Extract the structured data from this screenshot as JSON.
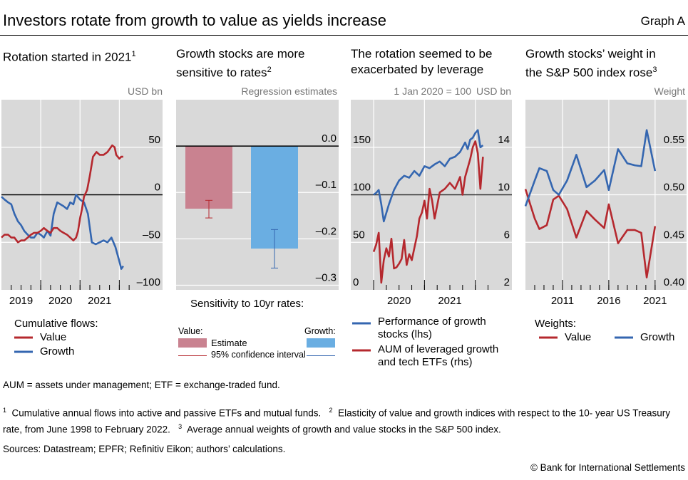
{
  "header": {
    "title": "Investors rotate from growth to value as yields increase",
    "graph_label": "Graph A"
  },
  "colors": {
    "value": "#b5282e",
    "growth": "#3466b0",
    "value_bar": "#c98290",
    "growth_bar": "#6aaee2",
    "plot_bg": "#d9d9d9"
  },
  "panels": [
    {
      "title": "Rotation started in 2021",
      "sup": "1",
      "unit": "USD bn",
      "legend": {
        "heading": "Cumulative flows:",
        "items": [
          "Value",
          "Growth"
        ]
      }
    },
    {
      "title_lines": [
        "Growth stocks are more",
        "sensitive to rates"
      ],
      "sup": "2",
      "unit": "Regression estimates",
      "legend": {
        "heading": "Sensitivity to 10yr rates:",
        "value_label": "Value:",
        "growth_label": "Growth:",
        "estimate": "Estimate",
        "ci": "95% confidence interval"
      }
    },
    {
      "title_lines": [
        "The rotation seemed to be",
        "exacerbated by leverage"
      ],
      "unit_left": "1 Jan 2020 = 100",
      "unit_right": "USD bn",
      "legend": {
        "items": [
          [
            "Performance of growth",
            "stocks (lhs)"
          ],
          [
            "AUM of leveraged growth",
            "and tech ETFs (rhs)"
          ]
        ]
      }
    },
    {
      "title_lines": [
        "Growth stocks’ weight in",
        "the S&P 500 index rose"
      ],
      "sup": "3",
      "unit": "Weight",
      "legend": {
        "heading": "Weights:",
        "items": [
          "Value",
          "Growth"
        ]
      }
    }
  ],
  "chart_data": [
    {
      "type": "line",
      "title": "Rotation started in 2021",
      "ylabel": "USD bn",
      "ylim": [
        -100,
        100
      ],
      "yticks": [
        50,
        0,
        -50,
        -100
      ],
      "ytick_labels": [
        "50",
        "0",
        "–50",
        "–100"
      ],
      "xlim": [
        2019,
        2023.1
      ],
      "xtick_labels": [
        "2019",
        "2020",
        "2021"
      ],
      "xtick_pos": [
        2019.5,
        2020.5,
        2021.5
      ],
      "series": [
        {
          "name": "Value",
          "x": [
            2019,
            2019.08,
            2019.17,
            2019.25,
            2019.33,
            2019.42,
            2019.5,
            2019.58,
            2019.67,
            2019.75,
            2019.83,
            2019.92,
            2020,
            2020.08,
            2020.17,
            2020.25,
            2020.33,
            2020.42,
            2020.5,
            2020.58,
            2020.67,
            2020.75,
            2020.83,
            2020.9,
            2020.95,
            2021,
            2021.05,
            2021.1,
            2021.18,
            2021.25,
            2021.33,
            2021.42,
            2021.5,
            2021.6,
            2021.7,
            2021.82,
            2021.88,
            2021.92,
            2022,
            2022.05,
            2022.1
          ],
          "y": [
            -45,
            -42,
            -42,
            -45,
            -45,
            -50,
            -48,
            -48,
            -45,
            -42,
            -40,
            -40,
            -38,
            -35,
            -38,
            -40,
            -35,
            -35,
            -38,
            -40,
            -42,
            -45,
            -48,
            -45,
            -38,
            -25,
            -15,
            -2,
            5,
            20,
            40,
            45,
            42,
            42,
            45,
            52,
            50,
            42,
            38,
            40,
            40
          ]
        },
        {
          "name": "Growth",
          "x": [
            2019,
            2019.08,
            2019.17,
            2019.25,
            2019.33,
            2019.42,
            2019.5,
            2019.58,
            2019.67,
            2019.75,
            2019.83,
            2019.92,
            2020,
            2020.08,
            2020.17,
            2020.25,
            2020.33,
            2020.42,
            2020.5,
            2020.58,
            2020.67,
            2020.75,
            2020.83,
            2020.9,
            2021,
            2021.1,
            2021.2,
            2021.3,
            2021.4,
            2021.5,
            2021.6,
            2021.7,
            2021.8,
            2021.9,
            2022,
            2022.05,
            2022.1
          ],
          "y": [
            -2,
            -5,
            -8,
            -10,
            -20,
            -28,
            -32,
            -38,
            -42,
            -45,
            -45,
            -40,
            -42,
            -45,
            -38,
            -43,
            -20,
            -8,
            -10,
            -12,
            -15,
            -8,
            -10,
            0,
            -5,
            -8,
            -20,
            -50,
            -52,
            -50,
            -48,
            -50,
            -45,
            -55,
            -70,
            -78,
            -75
          ]
        }
      ]
    },
    {
      "type": "bar",
      "title": "Growth stocks are more sensitive to rates",
      "ylabel": "Regression estimates",
      "xlabel": "Sensitivity to 10yr rates:",
      "ylim": [
        -0.31,
        0.1
      ],
      "yticks": [
        0,
        -0.1,
        -0.2,
        -0.3
      ],
      "ytick_labels": [
        "0.0",
        "–0.1",
        "–0.2",
        "–0.3"
      ],
      "categories": [
        "Value",
        "Growth"
      ],
      "values": [
        -0.135,
        -0.221
      ],
      "ci_low": [
        -0.155,
        -0.263
      ],
      "ci_high": [
        -0.117,
        -0.18
      ]
    },
    {
      "type": "line",
      "title": "The rotation seemed to be exacerbated by leverage",
      "ylabel": "1 Jan 2020 = 100",
      "y2label": "USD bn",
      "ylim": [
        0,
        200
      ],
      "y2lim": [
        2,
        18
      ],
      "yticks": [
        150,
        100,
        50,
        0
      ],
      "ytick_labels": [
        "150",
        "100",
        "50",
        "0"
      ],
      "y2ticks": [
        14,
        10,
        6,
        2
      ],
      "y2tick_labels": [
        "14",
        "10",
        "6",
        "2"
      ],
      "xlim": [
        2019.55,
        2022.72
      ],
      "xtick_labels": [
        "2020",
        "2021"
      ],
      "xtick_pos": [
        2020.5,
        2021.5
      ],
      "series": [
        {
          "name": "Performance of growth stocks (lhs)",
          "axis": "left",
          "x": [
            2020,
            2020.05,
            2020.1,
            2020.15,
            2020.2,
            2020.3,
            2020.4,
            2020.5,
            2020.6,
            2020.7,
            2020.8,
            2020.9,
            2021,
            2021.1,
            2021.2,
            2021.3,
            2021.4,
            2021.5,
            2021.6,
            2021.7,
            2021.75,
            2021.8,
            2021.85,
            2021.9,
            2021.95,
            2022,
            2022.05,
            2022.1,
            2022.15
          ],
          "y": [
            100,
            102,
            105,
            90,
            72,
            90,
            105,
            115,
            120,
            118,
            125,
            120,
            130,
            128,
            132,
            135,
            130,
            138,
            140,
            145,
            150,
            155,
            148,
            158,
            160,
            165,
            168,
            150,
            152
          ]
        },
        {
          "name": "AUM of leveraged growth and tech ETFs (rhs)",
          "axis": "right",
          "x": [
            2020,
            2020.05,
            2020.1,
            2020.15,
            2020.2,
            2020.25,
            2020.3,
            2020.35,
            2020.4,
            2020.45,
            2020.5,
            2020.55,
            2020.6,
            2020.65,
            2020.7,
            2020.75,
            2020.8,
            2020.85,
            2020.9,
            2020.95,
            2021,
            2021.05,
            2021.1,
            2021.15,
            2021.2,
            2021.3,
            2021.4,
            2021.5,
            2021.6,
            2021.7,
            2021.75,
            2021.8,
            2021.9,
            2021.95,
            2022,
            2022.05,
            2022.1,
            2022.15
          ],
          "y": [
            5.2,
            5.8,
            6.8,
            2.6,
            4.5,
            5.5,
            4.8,
            6.3,
            3.8,
            3.9,
            4.2,
            4.6,
            6.2,
            4.1,
            5.0,
            4.5,
            5.5,
            6.5,
            8.0,
            8.5,
            9.5,
            8.0,
            10.5,
            9.5,
            8.0,
            10.2,
            10.5,
            11.0,
            10.5,
            11.5,
            10.0,
            11.5,
            13.0,
            14.0,
            14.5,
            13.5,
            10.5,
            13.2
          ]
        }
      ]
    },
    {
      "type": "line",
      "title": "Growth stocks’ weight in the S&P 500 index rose",
      "ylabel": "Weight",
      "ylim": [
        0.4,
        0.6
      ],
      "yticks": [
        0.55,
        0.5,
        0.45,
        0.4
      ],
      "ytick_labels": [
        "0.55",
        "0.50",
        "0.45",
        "0.40"
      ],
      "xlim": [
        2007,
        2024.4
      ],
      "xtick_labels": [
        "2011",
        "2016",
        "2021"
      ],
      "xtick_pos": [
        2011,
        2016,
        2021
      ],
      "series": [
        {
          "name": "Value",
          "x": [
            2007,
            2008,
            2008.5,
            2009.3,
            2010,
            2010.6,
            2011.5,
            2012.5,
            2013.6,
            2014.5,
            2015.5,
            2016,
            2017,
            2018,
            2018.8,
            2019.5,
            2020.1,
            2021
          ],
          "y": [
            0.506,
            0.475,
            0.464,
            0.468,
            0.495,
            0.499,
            0.485,
            0.455,
            0.483,
            0.474,
            0.465,
            0.49,
            0.449,
            0.463,
            0.463,
            0.46,
            0.413,
            0.467
          ]
        },
        {
          "name": "Growth",
          "x": [
            2007,
            2008,
            2008.5,
            2009.3,
            2010,
            2010.6,
            2011.5,
            2012.5,
            2013.6,
            2014.5,
            2015.5,
            2016,
            2017,
            2018,
            2018.8,
            2019.5,
            2020.1,
            2021
          ],
          "y": [
            0.488,
            0.515,
            0.528,
            0.525,
            0.505,
            0.5,
            0.515,
            0.542,
            0.508,
            0.515,
            0.526,
            0.505,
            0.548,
            0.533,
            0.531,
            0.53,
            0.568,
            0.525
          ]
        }
      ]
    }
  ],
  "footer": {
    "abbrev": "AUM = assets under management; ETF = exchange-traded fund.",
    "note1": "Cumulative annual flows into active and passive ETFs and mutual funds.",
    "note2a": "Elasticity of value and growth indices with respect to the 10-",
    "note2b": "year US Treasury rate, from June 1998 to February 2022.",
    "note3": "Average annual weights of growth and value stocks in the S&P 500 index.",
    "sup1": "1",
    "sup2": "2",
    "sup3": "3",
    "sources": "Sources: Datastream; EPFR; Refinitiv Eikon; authors’ calculations.",
    "copyright": "© Bank for International Settlements"
  }
}
